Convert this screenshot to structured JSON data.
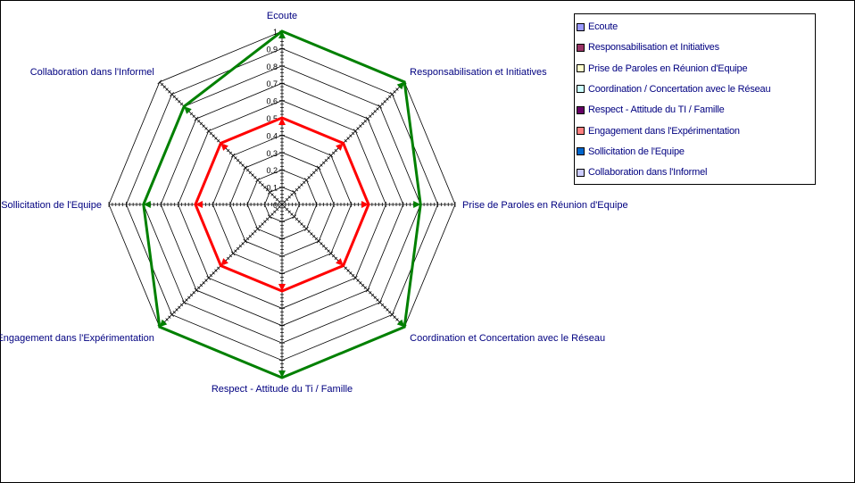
{
  "chart_data": {
    "type": "radar",
    "axes": [
      "Ecoute",
      "Responsabilisation et Initiatives",
      "Prise de Paroles en Réunion d'Equipe",
      "Coordination et Concertation avec le Réseau",
      "Respect - Attitude du Ti / Famille",
      "Engagement dans l'Expérimentation",
      "Sollicitation de l'Equipe",
      "Collaboration dans l'Informel"
    ],
    "rlim": [
      0,
      1
    ],
    "ticks": [
      "0",
      "0,1",
      "0,2",
      "0,3",
      "0,4",
      "0,5",
      "0,6",
      "0,7",
      "0,8",
      "0,9",
      "1"
    ],
    "series": [
      {
        "values": [
          0.5,
          0.5,
          0.5,
          0.5,
          0.5,
          0.5,
          0.5,
          0.5
        ],
        "color": "#ff0000"
      },
      {
        "values": [
          1.0,
          1.0,
          0.8,
          1.0,
          1.0,
          1.0,
          0.8,
          0.8
        ],
        "color": "#008000"
      }
    ],
    "grid": true,
    "legend_position": "top-right",
    "legend": [
      {
        "label": "Ecoute",
        "color": "#9999ff"
      },
      {
        "label": "Responsabilisation et Initiatives",
        "color": "#993366"
      },
      {
        "label": "Prise de Paroles en Réunion d'Equipe",
        "color": "#ffffcc"
      },
      {
        "label": "Coordination / Concertation avec le Réseau",
        "color": "#ccffff"
      },
      {
        "label": "Respect - Attitude du TI / Famille",
        "color": "#660066"
      },
      {
        "label": "Engagement dans l'Expérimentation",
        "color": "#ff8080"
      },
      {
        "label": "Sollicitation de l'Equipe",
        "color": "#0066cc"
      },
      {
        "label": "Collaboration dans l'Informel",
        "color": "#ccccff"
      }
    ]
  }
}
